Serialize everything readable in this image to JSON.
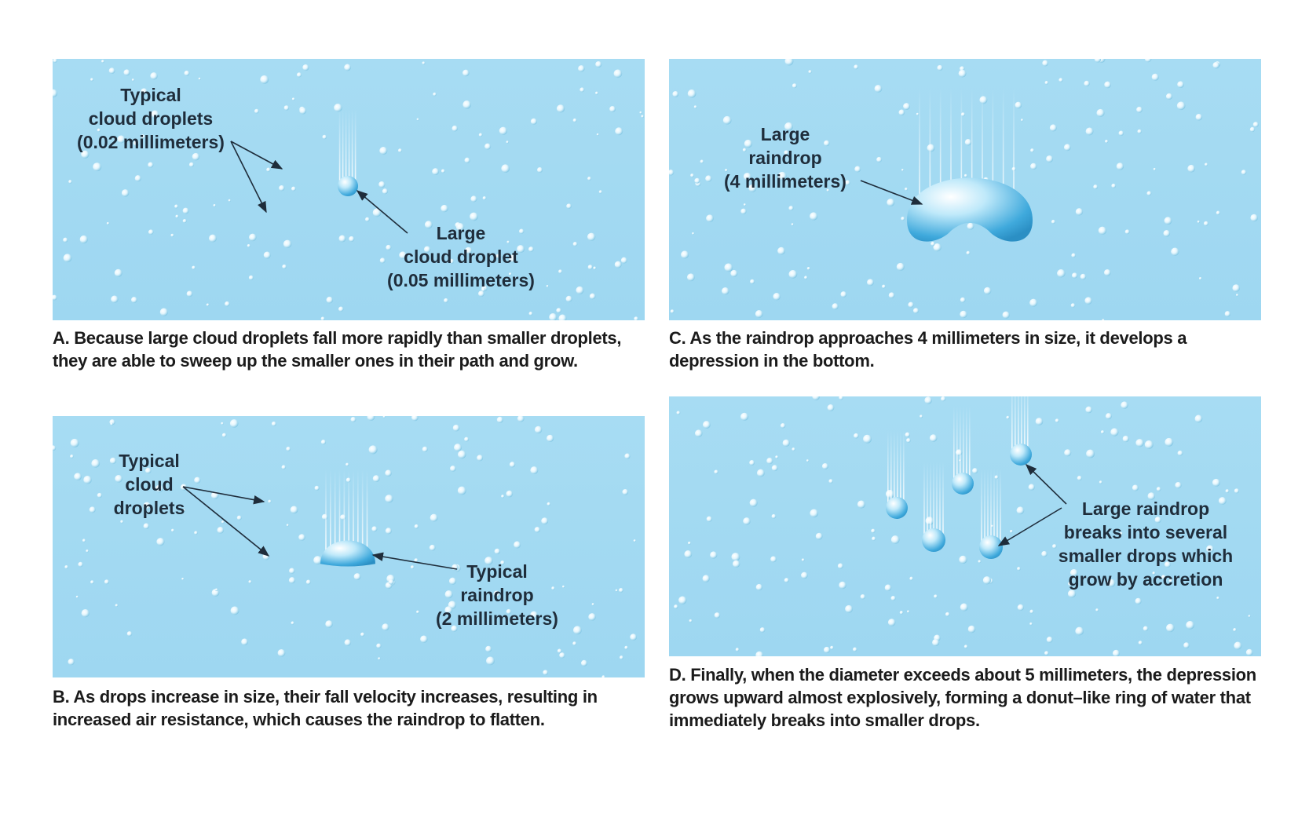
{
  "panels": [
    {
      "labels": [
        [
          "Typical",
          "cloud droplets",
          "(0.02 millimeters)"
        ],
        [
          "Large",
          "cloud droplet",
          "(0.05 millimeters)"
        ]
      ],
      "caption": "A. Because large cloud droplets fall more rapidly than smaller droplets, they are able to sweep up the smaller ones in their path and grow."
    },
    {
      "labels": [
        [
          "Typical",
          "cloud",
          "droplets"
        ],
        [
          "Typical",
          "raindrop",
          "(2 millimeters)"
        ]
      ],
      "caption": "B. As drops increase in size, their fall velocity increases, resulting in increased air resistance, which causes the raindrop to flatten."
    },
    {
      "labels": [
        [
          "Large",
          "raindrop",
          "(4 millimeters)"
        ]
      ],
      "caption": "C. As the raindrop approaches 4 millimeters in size, it develops a depression in the bottom."
    },
    {
      "labels": [
        [
          "Large raindrop",
          "breaks into several",
          "smaller drops which",
          "grow by accretion"
        ]
      ],
      "caption": "D. Finally, when the diameter exceeds about 5 millimeters, the depression grows upward almost explosively, forming a donut–like ring of water that immediately breaks into smaller drops."
    }
  ]
}
